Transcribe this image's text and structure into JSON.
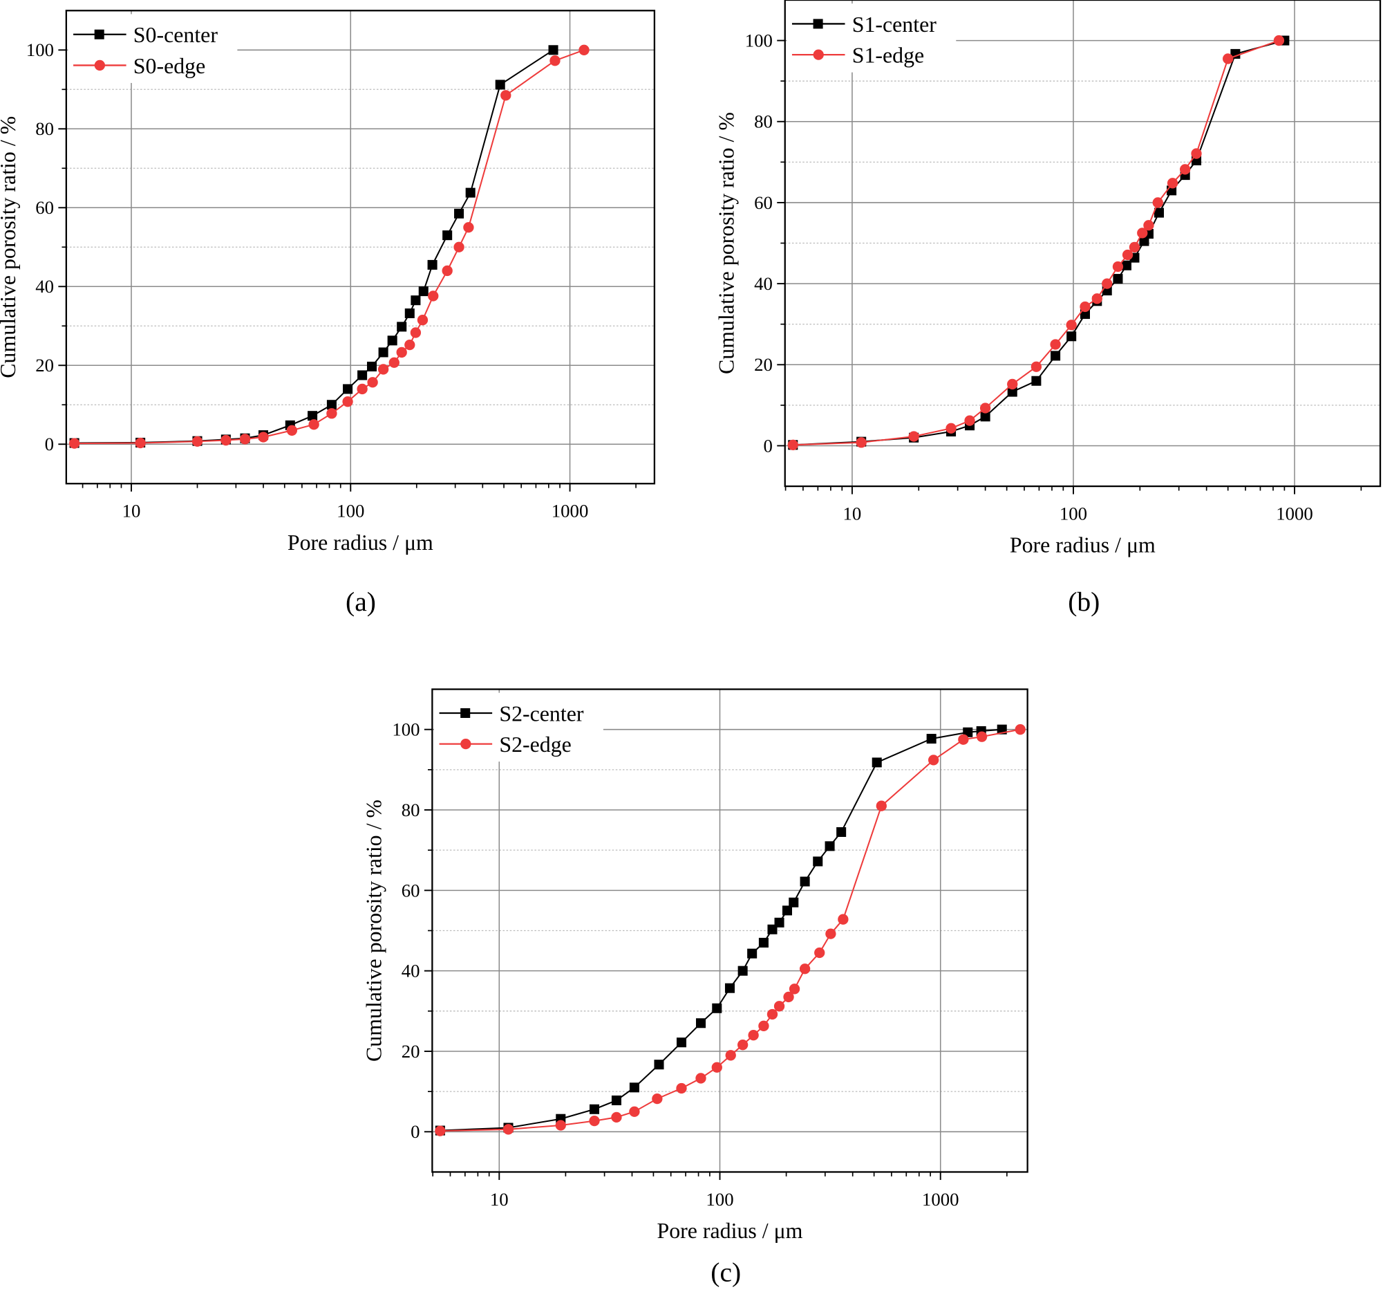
{
  "colors": {
    "center": "#000000",
    "edge": "#ee3b3b",
    "grid": "#8a8a8a"
  },
  "chart_data": [
    {
      "type": "line",
      "panel_label": "(a)",
      "xlabel": "Pore radius / μm",
      "ylabel": "Cumulative porosity ratio / %",
      "xscale": "log",
      "xlim": [
        5.05,
        2430
      ],
      "ylim": [
        -10,
        110
      ],
      "xticks": [
        10,
        100,
        1000
      ],
      "xtick_labels": [
        "10",
        "100",
        "1000"
      ],
      "yticks": [
        0,
        20,
        40,
        60,
        80,
        100
      ],
      "ytick_labels": [
        "0",
        "20",
        "40",
        "60",
        "80",
        "100"
      ],
      "grid": true,
      "legend_position": "top-left",
      "series": [
        {
          "name": "S0-center",
          "marker": "square",
          "color": "#000000",
          "x": [
            5.5,
            11,
            20,
            27,
            33,
            40,
            53,
            67,
            82,
            97,
            113,
            125,
            141,
            155,
            171,
            186,
            198,
            215,
            236,
            276,
            312,
            352,
            481,
            840
          ],
          "y": [
            0.3,
            0.4,
            0.8,
            1.2,
            1.5,
            2.3,
            4.8,
            7.2,
            10,
            14,
            17.5,
            19.7,
            23.3,
            26.3,
            29.8,
            33.2,
            36.5,
            38.8,
            45.5,
            53,
            58.5,
            63.8,
            91.2,
            100
          ]
        },
        {
          "name": "S0-edge",
          "marker": "circle",
          "color": "#ee3b3b",
          "x": [
            5.5,
            11,
            20,
            27,
            33,
            40,
            54,
            68,
            82,
            97,
            113,
            126,
            141,
            158,
            171,
            186,
            198,
            213,
            238,
            276,
            312,
            345,
            510,
            855,
            1160
          ],
          "y": [
            0.2,
            0.3,
            0.7,
            1,
            1.3,
            1.8,
            3.5,
            5,
            7.8,
            10.8,
            14,
            15.7,
            19,
            20.7,
            23.3,
            25.2,
            28.3,
            31.5,
            37.6,
            44,
            50,
            55,
            88.5,
            97.3,
            100
          ]
        }
      ]
    },
    {
      "type": "line",
      "panel_label": "(b)",
      "xlabel": "Pore radius / μm",
      "ylabel": "Cumulative porosity ratio / %",
      "xscale": "log",
      "xlim": [
        4.97,
        2440
      ],
      "ylim": [
        -10,
        110
      ],
      "xticks": [
        10,
        100,
        1000
      ],
      "xtick_labels": [
        "10",
        "100",
        "1000"
      ],
      "yticks": [
        0,
        20,
        40,
        60,
        80,
        100
      ],
      "ytick_labels": [
        "0",
        "20",
        "40",
        "60",
        "80",
        "100"
      ],
      "grid": true,
      "legend_position": "top-left",
      "series": [
        {
          "name": "S1-center",
          "marker": "square",
          "color": "#000000",
          "x": [
            5.4,
            11,
            19,
            28,
            34,
            40,
            53,
            68,
            83,
            98,
            113,
            128,
            142,
            159,
            174,
            189,
            209,
            219,
            244,
            278,
            320,
            360,
            540,
            900
          ],
          "y": [
            0.2,
            1,
            2,
            3.5,
            5,
            7.2,
            13.3,
            16,
            22.2,
            27,
            32.5,
            35.7,
            38.3,
            41.2,
            44.5,
            46.4,
            50.5,
            52.3,
            57.5,
            63,
            66.8,
            70.4,
            96.7,
            100
          ]
        },
        {
          "name": "S1-edge",
          "marker": "circle",
          "color": "#ee3b3b",
          "x": [
            5.4,
            11,
            19,
            28,
            34,
            40,
            53,
            68,
            83,
            98,
            113,
            128,
            142,
            159,
            176,
            189,
            205,
            219,
            241,
            281,
            320,
            360,
            500,
            850
          ],
          "y": [
            0.2,
            0.8,
            2.3,
            4.3,
            6.2,
            9.3,
            15.2,
            19.5,
            25,
            29.8,
            34.3,
            36.3,
            40,
            44.2,
            47.1,
            49,
            52.5,
            54.4,
            60,
            64.8,
            68.2,
            72.1,
            95.5,
            100
          ]
        }
      ]
    },
    {
      "type": "line",
      "panel_label": "(c)",
      "xlabel": "Pore radius / μm",
      "ylabel": "Cumulative porosity ratio / %",
      "xscale": "log",
      "xlim": [
        4.97,
        2480
      ],
      "ylim": [
        -10,
        110
      ],
      "xticks": [
        10,
        100,
        1000
      ],
      "xtick_labels": [
        "10",
        "100",
        "1000"
      ],
      "yticks": [
        0,
        20,
        40,
        60,
        80,
        100
      ],
      "ytick_labels": [
        "0",
        "20",
        "40",
        "60",
        "80",
        "100"
      ],
      "grid": true,
      "legend_position": "top-left",
      "series": [
        {
          "name": "S2-center",
          "marker": "square",
          "color": "#000000",
          "x": [
            5.4,
            11,
            19,
            27,
            34,
            41,
            53,
            67,
            82,
            97,
            111,
            127,
            140,
            158,
            173,
            186,
            202,
            216,
            243,
            278,
            315,
            355,
            515,
            910,
            1330,
            1530,
            1900
          ],
          "y": [
            0.3,
            1,
            3.2,
            5.6,
            7.8,
            11,
            16.7,
            22.2,
            27,
            30.7,
            35.7,
            40,
            44.3,
            47,
            50.3,
            52,
            55,
            57,
            62.2,
            67.2,
            71,
            74.5,
            91.8,
            97.7,
            99.3,
            99.6,
            100
          ]
        },
        {
          "name": "S2-edge",
          "marker": "circle",
          "color": "#ee3b3b",
          "x": [
            5.4,
            11,
            19,
            27,
            34,
            41,
            52,
            67,
            82,
            97,
            112,
            127,
            142,
            158,
            173,
            186,
            205,
            218,
            243,
            283,
            318,
            362,
            540,
            930,
            1270,
            1540,
            2300
          ],
          "y": [
            0.2,
            0.6,
            1.6,
            2.7,
            3.6,
            5,
            8.2,
            10.8,
            13.3,
            16,
            19,
            21.6,
            24,
            26.3,
            29.2,
            31.2,
            33.5,
            35.5,
            40.5,
            44.5,
            49.2,
            52.8,
            81,
            92.4,
            97.5,
            98.2,
            100
          ]
        }
      ]
    }
  ]
}
